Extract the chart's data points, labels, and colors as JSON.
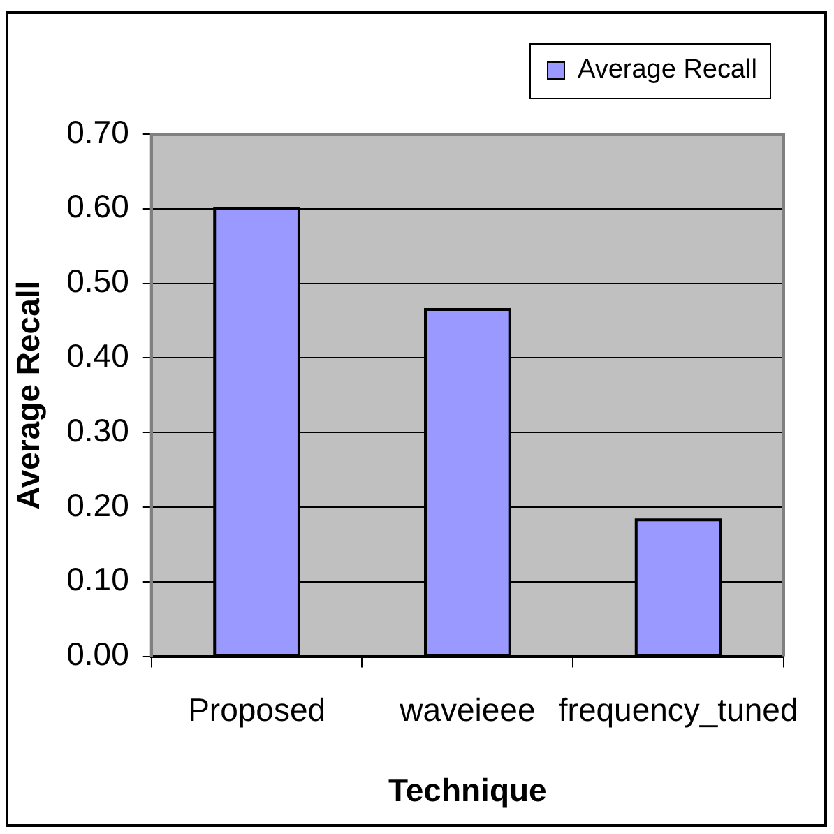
{
  "chart_data": {
    "type": "bar",
    "xlabel": "Technique",
    "ylabel": "Average Recall",
    "categories": [
      "Proposed",
      "waveieee",
      "frequency_tuned"
    ],
    "series": [
      {
        "name": "Average Recall",
        "color": "#9999ff",
        "values": [
          0.6,
          0.465,
          0.183
        ]
      }
    ],
    "ylim": [
      0,
      0.7
    ],
    "yticks": [
      {
        "value": 0,
        "label": "0.00"
      },
      {
        "value": 0.1,
        "label": "0.10"
      },
      {
        "value": 0.2,
        "label": "0.20"
      },
      {
        "value": 0.3,
        "label": "0.30"
      },
      {
        "value": 0.4,
        "label": "0.40"
      },
      {
        "value": 0.5,
        "label": "0.50"
      },
      {
        "value": 0.6,
        "label": "0.60"
      },
      {
        "value": 0.7,
        "label": "0.70"
      }
    ],
    "grid": "y",
    "legend": "top right"
  }
}
